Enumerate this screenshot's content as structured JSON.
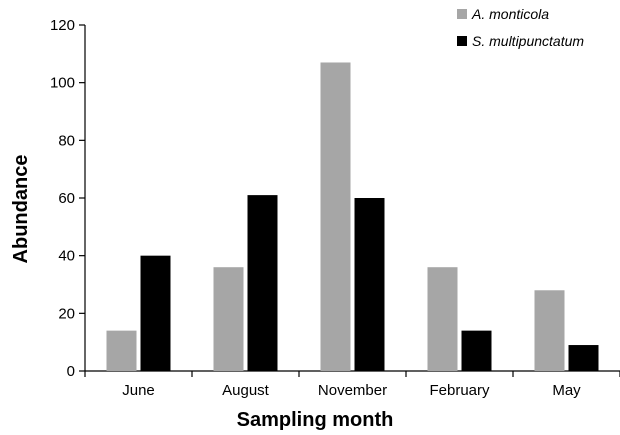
{
  "chart_data": {
    "type": "bar",
    "categories": [
      "June",
      "August",
      "November",
      "February",
      "May"
    ],
    "series": [
      {
        "name": "A. monticola",
        "color": "#a6a6a6",
        "values": [
          14,
          36,
          107,
          36,
          28
        ]
      },
      {
        "name": "S. multipunctatum",
        "color": "#000000",
        "values": [
          40,
          61,
          60,
          14,
          9
        ]
      }
    ],
    "xlabel": "Sampling month",
    "ylabel": "Abundance",
    "ylim": [
      0,
      120
    ],
    "yticks": [
      0,
      20,
      40,
      60,
      80,
      100,
      120
    ],
    "grid": false,
    "legend_position": "top-right"
  }
}
